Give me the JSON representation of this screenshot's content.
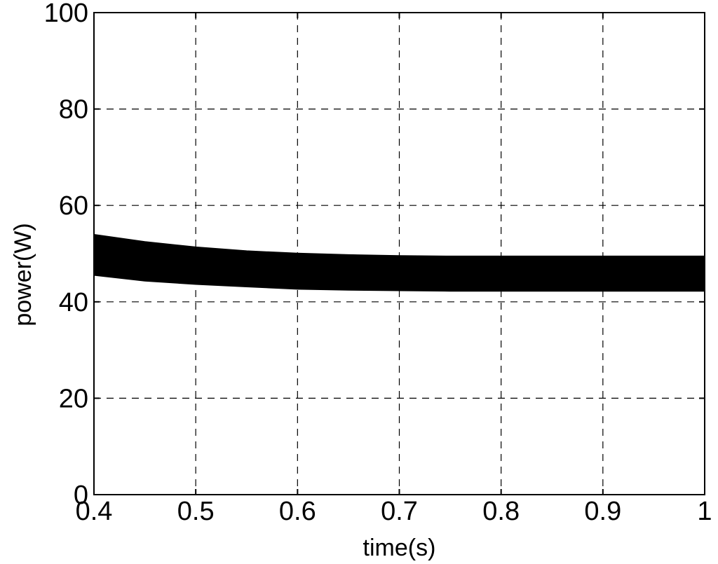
{
  "chart_data": {
    "type": "area",
    "title": "",
    "xlabel": "time(s)",
    "ylabel": "power(W)",
    "xlim": [
      0.4,
      1
    ],
    "ylim": [
      0,
      100
    ],
    "xticks": [
      0.4,
      0.5,
      0.6,
      0.7,
      0.8,
      0.9,
      1
    ],
    "xtick_labels": [
      "0.4",
      "0.5",
      "0.6",
      "0.7",
      "0.8",
      "0.9",
      "1"
    ],
    "yticks": [
      0,
      20,
      40,
      60,
      80,
      100
    ],
    "ytick_labels": [
      "0",
      "20",
      "40",
      "60",
      "80",
      "100"
    ],
    "grid": true,
    "series": [
      {
        "color": "#000000",
        "x": [
          0.4,
          0.45,
          0.5,
          0.55,
          0.6,
          0.65,
          0.7,
          0.75,
          0.8,
          0.85,
          0.9,
          0.95,
          1.0
        ],
        "upper": [
          54,
          52.5,
          51.4,
          50.6,
          50.1,
          49.8,
          49.6,
          49.5,
          49.5,
          49.5,
          49.5,
          49.5,
          49.5
        ],
        "lower": [
          45.5,
          44.3,
          43.6,
          43.1,
          42.6,
          42.4,
          42.3,
          42.2,
          42.2,
          42.2,
          42.2,
          42.2,
          42.2
        ]
      }
    ]
  }
}
